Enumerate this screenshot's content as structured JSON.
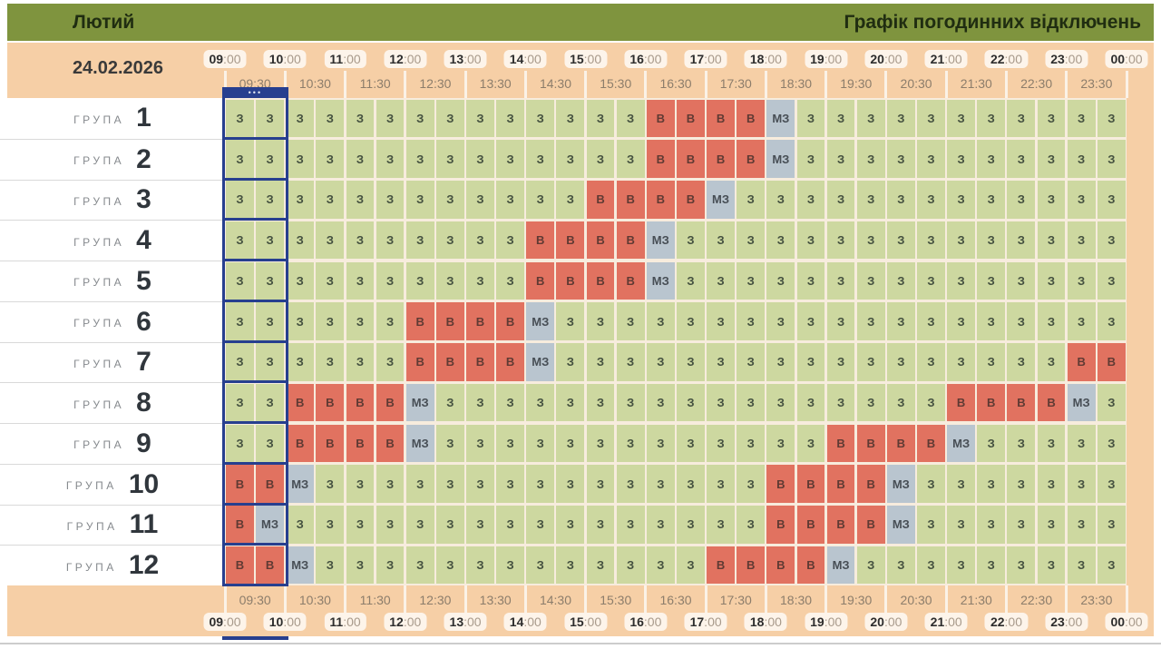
{
  "title_bar": {
    "month": "Лютий",
    "title": "Графік погодинних відключень"
  },
  "header": {
    "date": "24.02.2026"
  },
  "colors": {
    "title_bg": "#7f943e",
    "band_bg": "#f6cfa6",
    "cell_on_bg": "#cdd8a0",
    "cell_off_bg": "#e17260",
    "cell_maybe_bg": "#b9c5cf",
    "highlight_blue": "#273f8f"
  },
  "highlight": {
    "hour_index": 0,
    "dots": "•••"
  },
  "chart_data": {
    "type": "heatmap",
    "title": "Графік погодинних відключень",
    "subtitle_month": "Лютий",
    "date": "24.02.2026",
    "x_hour_ticks": [
      "09:00",
      "10:00",
      "11:00",
      "12:00",
      "13:00",
      "14:00",
      "15:00",
      "16:00",
      "17:00",
      "18:00",
      "19:00",
      "20:00",
      "21:00",
      "22:00",
      "23:00",
      "00:00"
    ],
    "x_half_hour_ticks": [
      "09:30",
      "10:30",
      "11:30",
      "12:30",
      "13:30",
      "14:30",
      "15:30",
      "16:30",
      "17:30",
      "18:30",
      "19:30",
      "20:30",
      "21:30",
      "22:30",
      "23:30"
    ],
    "cell_values_legend": [
      "З",
      "В",
      "МЗ"
    ],
    "group_label": "ГРУПА",
    "rows": [
      {
        "group": "1",
        "cells": [
          "З",
          "З",
          "З",
          "З",
          "З",
          "З",
          "З",
          "З",
          "З",
          "З",
          "З",
          "З",
          "З",
          "З",
          "В",
          "В",
          "В",
          "В",
          "МЗ",
          "З",
          "З",
          "З",
          "З",
          "З",
          "З",
          "З",
          "З",
          "З",
          "З",
          "З"
        ]
      },
      {
        "group": "2",
        "cells": [
          "З",
          "З",
          "З",
          "З",
          "З",
          "З",
          "З",
          "З",
          "З",
          "З",
          "З",
          "З",
          "З",
          "З",
          "В",
          "В",
          "В",
          "В",
          "МЗ",
          "З",
          "З",
          "З",
          "З",
          "З",
          "З",
          "З",
          "З",
          "З",
          "З",
          "З"
        ]
      },
      {
        "group": "3",
        "cells": [
          "З",
          "З",
          "З",
          "З",
          "З",
          "З",
          "З",
          "З",
          "З",
          "З",
          "З",
          "З",
          "В",
          "В",
          "В",
          "В",
          "МЗ",
          "З",
          "З",
          "З",
          "З",
          "З",
          "З",
          "З",
          "З",
          "З",
          "З",
          "З",
          "З",
          "З"
        ]
      },
      {
        "group": "4",
        "cells": [
          "З",
          "З",
          "З",
          "З",
          "З",
          "З",
          "З",
          "З",
          "З",
          "З",
          "В",
          "В",
          "В",
          "В",
          "МЗ",
          "З",
          "З",
          "З",
          "З",
          "З",
          "З",
          "З",
          "З",
          "З",
          "З",
          "З",
          "З",
          "З",
          "З",
          "З"
        ]
      },
      {
        "group": "5",
        "cells": [
          "З",
          "З",
          "З",
          "З",
          "З",
          "З",
          "З",
          "З",
          "З",
          "З",
          "В",
          "В",
          "В",
          "В",
          "МЗ",
          "З",
          "З",
          "З",
          "З",
          "З",
          "З",
          "З",
          "З",
          "З",
          "З",
          "З",
          "З",
          "З",
          "З",
          "З"
        ]
      },
      {
        "group": "6",
        "cells": [
          "З",
          "З",
          "З",
          "З",
          "З",
          "З",
          "В",
          "В",
          "В",
          "В",
          "МЗ",
          "З",
          "З",
          "З",
          "З",
          "З",
          "З",
          "З",
          "З",
          "З",
          "З",
          "З",
          "З",
          "З",
          "З",
          "З",
          "З",
          "З",
          "З",
          "З"
        ]
      },
      {
        "group": "7",
        "cells": [
          "З",
          "З",
          "З",
          "З",
          "З",
          "З",
          "В",
          "В",
          "В",
          "В",
          "МЗ",
          "З",
          "З",
          "З",
          "З",
          "З",
          "З",
          "З",
          "З",
          "З",
          "З",
          "З",
          "З",
          "З",
          "З",
          "З",
          "З",
          "З",
          "В",
          "В"
        ]
      },
      {
        "group": "8",
        "cells": [
          "З",
          "З",
          "В",
          "В",
          "В",
          "В",
          "МЗ",
          "З",
          "З",
          "З",
          "З",
          "З",
          "З",
          "З",
          "З",
          "З",
          "З",
          "З",
          "З",
          "З",
          "З",
          "З",
          "З",
          "З",
          "В",
          "В",
          "В",
          "В",
          "МЗ",
          "З"
        ]
      },
      {
        "group": "9",
        "cells": [
          "З",
          "З",
          "В",
          "В",
          "В",
          "В",
          "МЗ",
          "З",
          "З",
          "З",
          "З",
          "З",
          "З",
          "З",
          "З",
          "З",
          "З",
          "З",
          "З",
          "З",
          "В",
          "В",
          "В",
          "В",
          "МЗ",
          "З",
          "З",
          "З",
          "З",
          "З"
        ]
      },
      {
        "group": "10",
        "cells": [
          "В",
          "В",
          "МЗ",
          "З",
          "З",
          "З",
          "З",
          "З",
          "З",
          "З",
          "З",
          "З",
          "З",
          "З",
          "З",
          "З",
          "З",
          "З",
          "В",
          "В",
          "В",
          "В",
          "МЗ",
          "З",
          "З",
          "З",
          "З",
          "З",
          "З",
          "З"
        ]
      },
      {
        "group": "11",
        "cells": [
          "В",
          "МЗ",
          "З",
          "З",
          "З",
          "З",
          "З",
          "З",
          "З",
          "З",
          "З",
          "З",
          "З",
          "З",
          "З",
          "З",
          "З",
          "З",
          "В",
          "В",
          "В",
          "В",
          "МЗ",
          "З",
          "З",
          "З",
          "З",
          "З",
          "З",
          "З"
        ]
      },
      {
        "group": "12",
        "cells": [
          "В",
          "В",
          "МЗ",
          "З",
          "З",
          "З",
          "З",
          "З",
          "З",
          "З",
          "З",
          "З",
          "З",
          "З",
          "З",
          "З",
          "В",
          "В",
          "В",
          "В",
          "МЗ",
          "З",
          "З",
          "З",
          "З",
          "З",
          "З",
          "З",
          "З",
          "З"
        ]
      }
    ]
  }
}
